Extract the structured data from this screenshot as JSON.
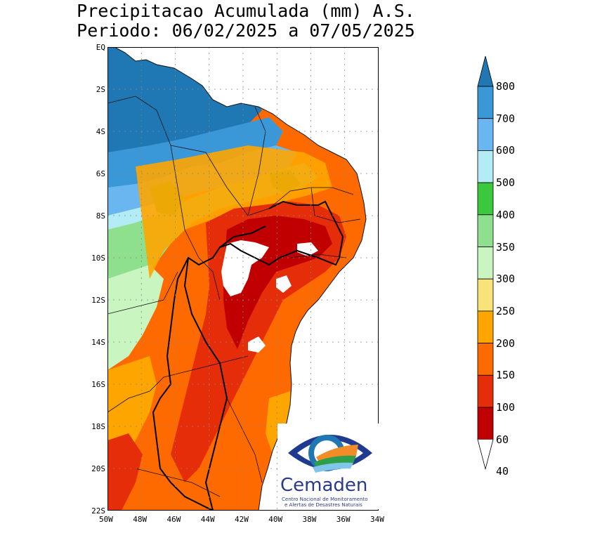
{
  "title": {
    "line1": "Precipitacao Acumulada (mm) A.S.",
    "line2": "Periodo: 06/02/2025 a 07/05/2025"
  },
  "axes": {
    "lat_ticks": [
      "EQ",
      "2S",
      "4S",
      "6S",
      "8S",
      "10S",
      "12S",
      "14S",
      "16S",
      "18S",
      "20S",
      "22S"
    ],
    "lon_ticks": [
      "50W",
      "48W",
      "46W",
      "44W",
      "42W",
      "40W",
      "38W",
      "36W",
      "34W"
    ]
  },
  "colorbar": {
    "levels": [
      "800",
      "700",
      "600",
      "500",
      "400",
      "350",
      "300",
      "250",
      "200",
      "150",
      "100",
      "60",
      "40"
    ],
    "colors": [
      "#1f78b4",
      "#3a98d8",
      "#6ab6f0",
      "#b3ecf4",
      "#3cc83c",
      "#8ee08e",
      "#c9f5c0",
      "#f8e27a",
      "#ffa500",
      "#ff6a00",
      "#e62d0a",
      "#c00000"
    ]
  },
  "logo": {
    "name": "Cemaden",
    "line1": "Centro Nacional de Monitoramento",
    "line2": "e Alertas de Desastres Naturais"
  }
}
